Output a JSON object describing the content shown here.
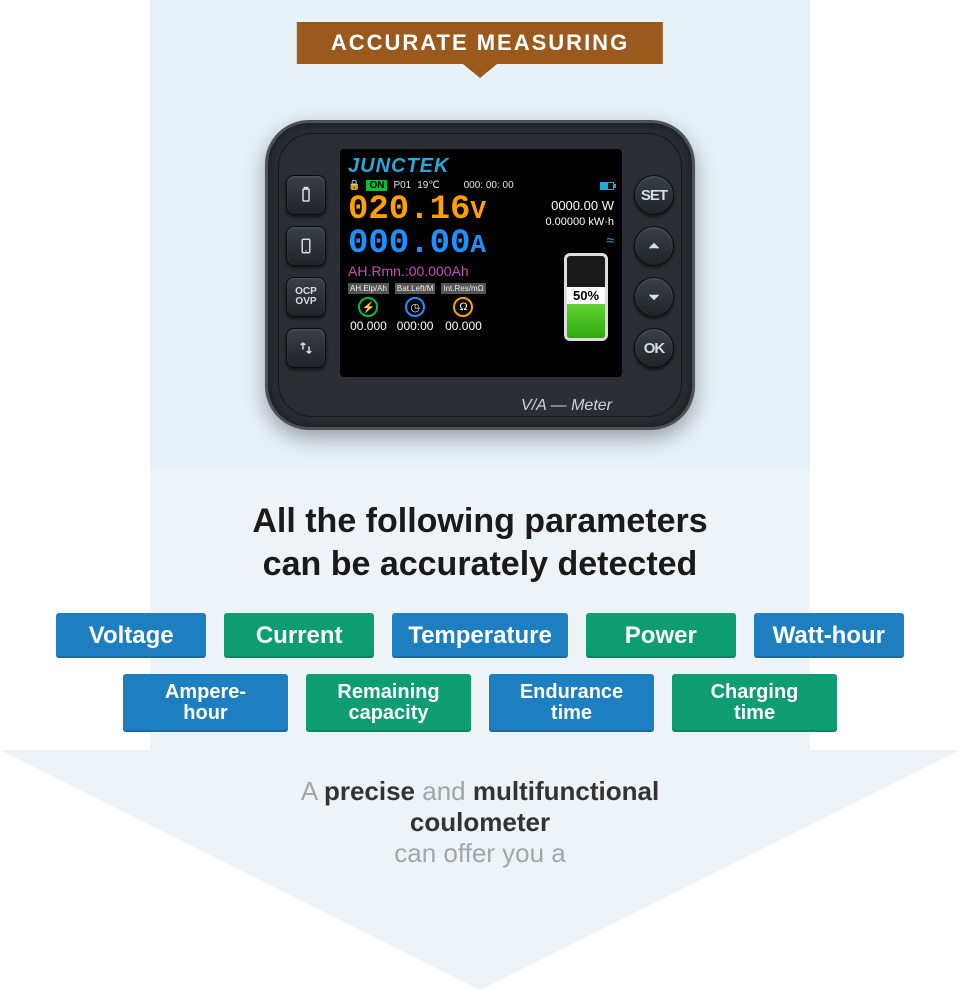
{
  "ribbon": {
    "text": "ACCURATE MEASURING",
    "bg": "#9a5a1e"
  },
  "device": {
    "brand": "JUNCTEK",
    "status": {
      "on": "ON",
      "profile": "P01",
      "temp": "19℃",
      "timer": "000: 00: 00"
    },
    "voltage": {
      "value": "020.16",
      "unit": "V",
      "color": "#ffa000"
    },
    "current": {
      "value": "000.00",
      "unit": "A",
      "color": "#1e90ff"
    },
    "power": {
      "value": "0000.00",
      "unit": "W"
    },
    "energy": {
      "value": "0.00000",
      "unit": "kW·h"
    },
    "ahrmn": {
      "label": "AH.Rmn.:",
      "value": "00.000Ah",
      "color": "#cc4cc0"
    },
    "cols": [
      {
        "hd": "AH.Elp/Ah",
        "val": "00.000",
        "ring": "c-g",
        "glyph": "⚡"
      },
      {
        "hd": "Bat.Left/M",
        "val": "000:00",
        "ring": "c-b",
        "glyph": "◷"
      },
      {
        "hd": "Int.Res/mΩ",
        "val": "00.000",
        "ring": "c-y",
        "glyph": "Ω"
      }
    ],
    "battery": {
      "pct_label": "50%",
      "pct": 50
    },
    "meter_label": "V/A — Meter",
    "left_buttons": [
      "battery-icon",
      "phone-icon",
      "ocp-ovp",
      "arrows-icon"
    ],
    "right_buttons": [
      "SET",
      "up",
      "down",
      "OK"
    ]
  },
  "heading": {
    "l1": "All the following parameters",
    "l2": "can be accurately detected"
  },
  "tags_row1": [
    {
      "label": "Voltage",
      "style": "blue"
    },
    {
      "label": "Current",
      "style": "green"
    },
    {
      "label": "Temperature",
      "style": "blue"
    },
    {
      "label": "Power",
      "style": "green"
    },
    {
      "label": "Watt-hour",
      "style": "blue"
    }
  ],
  "tags_row2": [
    {
      "label": "Ampere-\nhour",
      "style": "blue"
    },
    {
      "label": "Remaining\ncapacity",
      "style": "green"
    },
    {
      "label": "Endurance\ntime",
      "style": "blue"
    },
    {
      "label": "Charging\ntime",
      "style": "green"
    }
  ],
  "bottom": {
    "pre": "A ",
    "b1": "precise",
    "mid": " and ",
    "b2": "multifunctional",
    "l2": "coulometer",
    "l3": "can offer you a"
  },
  "colors": {
    "band": "#e6f1f8",
    "arrow": "#e9f1f6",
    "blue_tag": "#1d7fc0",
    "green_tag": "#0d9d6f"
  }
}
